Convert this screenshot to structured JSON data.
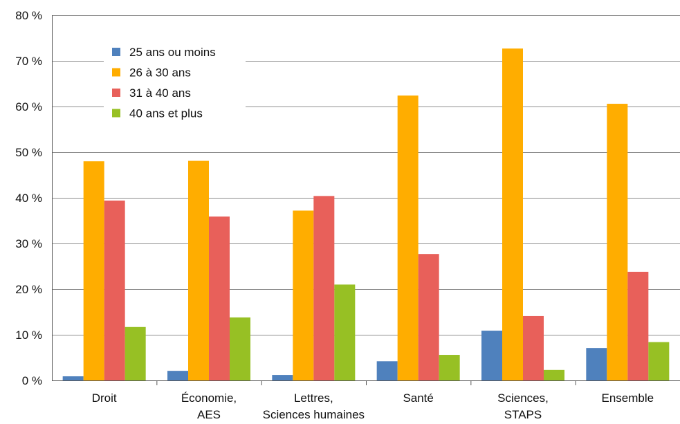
{
  "chart_data": {
    "type": "bar",
    "title": "",
    "xlabel": "",
    "ylabel": "",
    "ylim": [
      0,
      80
    ],
    "yticks": [
      0,
      10,
      20,
      30,
      40,
      50,
      60,
      70,
      80
    ],
    "ytick_labels": [
      "0 %",
      "10 %",
      "20 %",
      "30 %",
      "40 %",
      "50 %",
      "60 %",
      "70 %",
      "80 %"
    ],
    "grid": true,
    "legend_position": "top-left",
    "categories": [
      [
        "Droit"
      ],
      [
        "Économie,",
        "AES"
      ],
      [
        "Lettres,",
        "Sciences humaines"
      ],
      [
        "Santé"
      ],
      [
        "Sciences,",
        "STAPS"
      ],
      [
        "Ensemble"
      ]
    ],
    "series": [
      {
        "name": "25 ans ou moins",
        "color": "#4f81bd",
        "values": [
          0.9,
          2.1,
          1.2,
          4.2,
          10.9,
          7.1
        ]
      },
      {
        "name": "26 à 30 ans",
        "color": "#ffad00",
        "values": [
          48.0,
          48.1,
          37.2,
          62.4,
          72.7,
          60.6
        ]
      },
      {
        "name": "31 à 40 ans",
        "color": "#e8605a",
        "values": [
          39.4,
          35.9,
          40.4,
          27.7,
          14.1,
          23.8
        ]
      },
      {
        "name": "40 ans et plus",
        "color": "#97c024",
        "values": [
          11.7,
          13.8,
          21.0,
          5.6,
          2.3,
          8.4
        ]
      }
    ]
  }
}
